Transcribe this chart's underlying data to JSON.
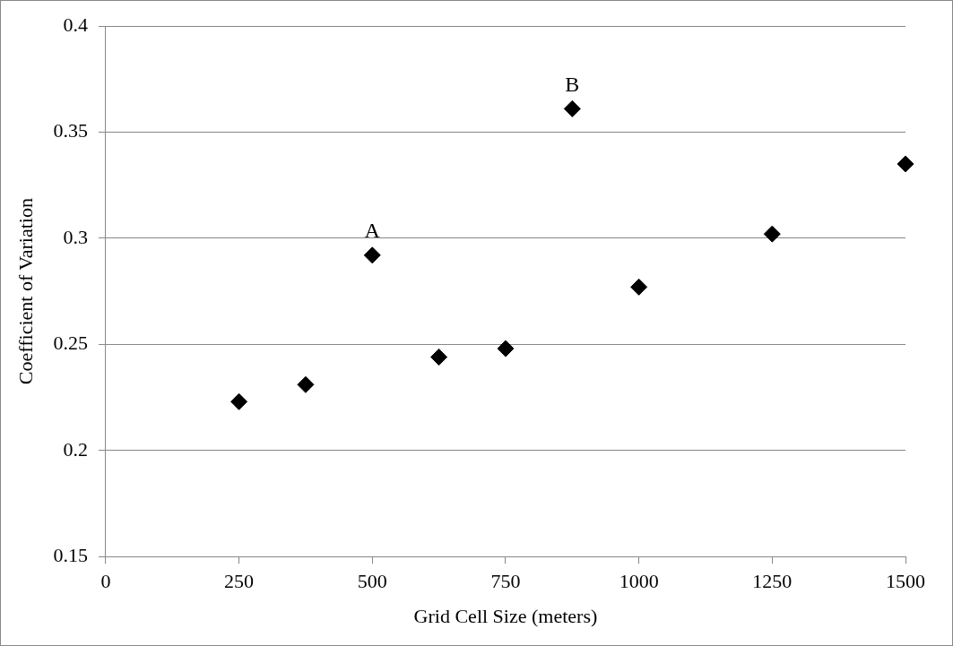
{
  "chart_data": {
    "type": "scatter",
    "xlabel": "Grid Cell Size (meters)",
    "ylabel": "Coefficient of Variation",
    "x": [
      250,
      375,
      500,
      625,
      750,
      875,
      1000,
      1250,
      1500
    ],
    "series": [
      {
        "color": "#000000",
        "values": [
          0.223,
          0.231,
          0.292,
          0.244,
          0.248,
          0.361,
          0.277,
          0.302,
          0.335
        ]
      }
    ],
    "xlim": [
      0,
      1500
    ],
    "xticks": [
      0,
      250,
      500,
      750,
      1000,
      1250,
      1500
    ],
    "ylim": [
      0.15,
      0.4
    ],
    "yticks": [
      0.15,
      0.2,
      0.25,
      0.3,
      0.35,
      0.4
    ],
    "grid": "y",
    "legend": false,
    "marker": "diamond",
    "annotations": [
      {
        "text": "A",
        "x": 500,
        "y": 0.292
      },
      {
        "text": "B",
        "x": 875,
        "y": 0.361
      }
    ]
  }
}
